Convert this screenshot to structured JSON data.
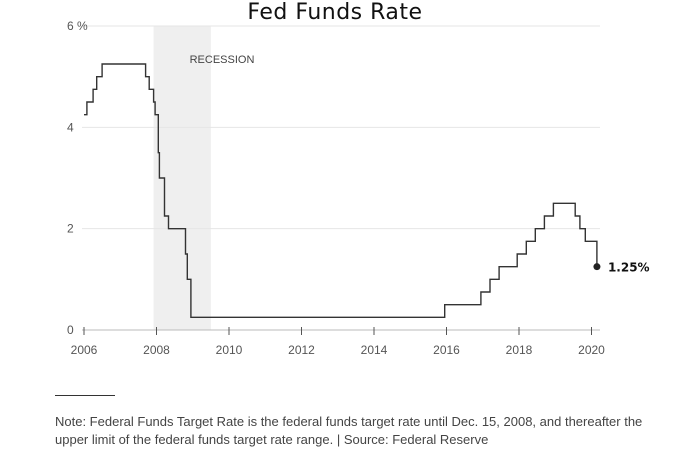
{
  "chart_data": {
    "type": "line",
    "title": "Fed Funds Rate",
    "xlabel": "",
    "ylabel": "",
    "xlim": [
      2006.0,
      2020.4
    ],
    "ylim": [
      0,
      6
    ],
    "grid": true,
    "x_ticks": [
      2006,
      2008,
      2010,
      2012,
      2014,
      2016,
      2018,
      2020
    ],
    "x_tick_labels": [
      "2006",
      "2008",
      "2010",
      "2012",
      "2014",
      "2016",
      "2018",
      "2020"
    ],
    "y_ticks": [
      0,
      2,
      4,
      6
    ],
    "y_tick_labels": [
      "0",
      "2",
      "4",
      "6 %"
    ],
    "shaded_regions": [
      {
        "label": "RECESSION",
        "from": 2007.92,
        "to": 2009.5
      }
    ],
    "series": [
      {
        "step": true,
        "points": [
          [
            2006.0,
            4.25
          ],
          [
            2006.08,
            4.5
          ],
          [
            2006.25,
            4.75
          ],
          [
            2006.35,
            5.0
          ],
          [
            2006.5,
            5.25
          ],
          [
            2007.7,
            5.0
          ],
          [
            2007.8,
            4.75
          ],
          [
            2007.92,
            4.5
          ],
          [
            2007.96,
            4.25
          ],
          [
            2008.05,
            3.5
          ],
          [
            2008.08,
            3.0
          ],
          [
            2008.22,
            2.25
          ],
          [
            2008.33,
            2.0
          ],
          [
            2008.8,
            1.5
          ],
          [
            2008.85,
            1.0
          ],
          [
            2008.95,
            0.25
          ],
          [
            2015.95,
            0.5
          ],
          [
            2016.95,
            0.75
          ],
          [
            2017.2,
            1.0
          ],
          [
            2017.45,
            1.25
          ],
          [
            2017.95,
            1.5
          ],
          [
            2018.2,
            1.75
          ],
          [
            2018.45,
            2.0
          ],
          [
            2018.7,
            2.25
          ],
          [
            2018.95,
            2.5
          ],
          [
            2019.55,
            2.25
          ],
          [
            2019.68,
            2.0
          ],
          [
            2019.83,
            1.75
          ],
          [
            2020.15,
            1.25
          ]
        ],
        "color": "#333333"
      }
    ],
    "end_marker": {
      "x": 2020.15,
      "y": 1.25,
      "label": "1.25%"
    }
  },
  "note": "Note: Federal Funds Target Rate is the federal funds target rate until Dec. 15, 2008, and thereafter the upper limit of the federal funds target rate range. |  Source: Federal Reserve"
}
